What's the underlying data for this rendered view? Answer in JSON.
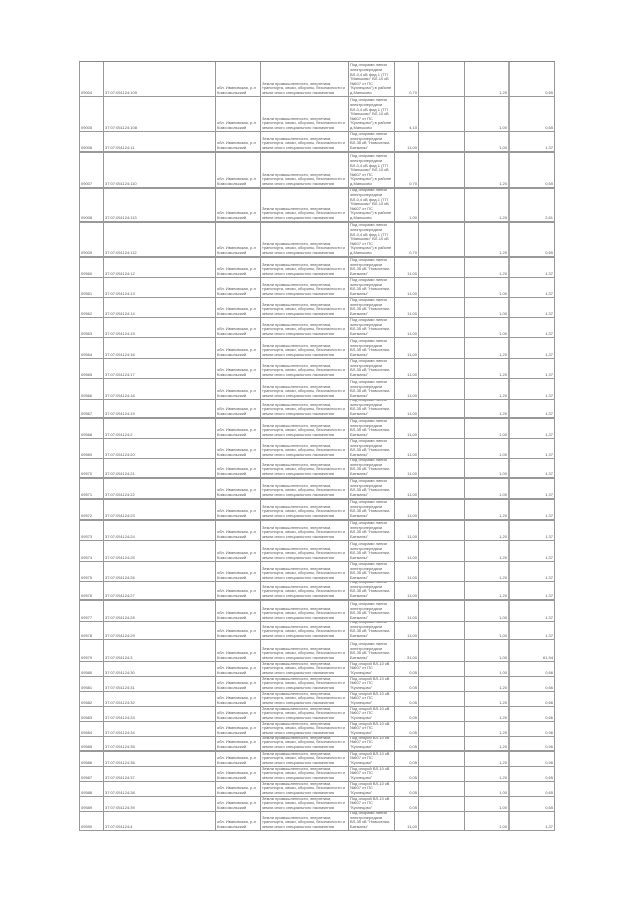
{
  "table": {
    "rows": [
      {
        "id": "09004",
        "cad": "37:07:051124:109",
        "addr": "обл. Ивановская, р-н Комсомольский",
        "cat": "Земли промышленности, энергетики, транспорта, связи, обороны, безопасности и земли иного специального назначения",
        "desc": "Под опорами линии электропередачи ВЛ-0,4 кВ фид.1 (ТП \"Маньково\" ВЛ-10 кВ №607 от ПС \"Кузнецово\") в районе д.Маньково",
        "area": "0,70",
        "c6": "",
        "c7": "1,20",
        "c8": "0,65"
      },
      {
        "id": "09005",
        "cad": "37:07:051124:108",
        "addr": "обл. Ивановская, р-н Комсомольский",
        "cat": "Земли промышленности, энергетики, транспорта, связи, обороны, безопасности и земли иного специального назначения",
        "desc": "Под опорами линии электропередачи ВЛ-0,4 кВ фид.1 (ТП \"Маньково\" ВЛ-10 кВ №607 от ПС \"Кузнецово\") в районе д.Маньково",
        "area": "4,10",
        "c6": "",
        "c7": "1,00",
        "c8": "0,65"
      },
      {
        "id": "09006",
        "cad": "37:07:051124:11",
        "addr": "обл. Ивановская, р-н Комсомольский",
        "cat": "Земли промышленности, энергетики, транспорта, связи, обороны, безопасности и земли иного специального назначения",
        "desc": "Под опорами линии электропередачи ВЛ-35 кВ \"Новоселки-Батманы\"",
        "area": "11,00",
        "c6": "",
        "c7": "1,00",
        "c8": "1,37"
      },
      {
        "id": "09007",
        "cad": "37:07:051124:110",
        "addr": "обл. Ивановская, р-н Комсомольский",
        "cat": "Земли промышленности, энергетики, транспорта, связи, обороны, безопасности и земли иного специального назначения",
        "desc": "Под опорами линии электропередачи ВЛ-0,4 кВ фид.1 (ТП \"Маньково\" ВЛ-10 кВ №607 от ПС \"Кузнецово\") в районе д.Маньково",
        "area": "0,70",
        "c6": "",
        "c7": "1,20",
        "c8": "0,65"
      },
      {
        "id": "09008",
        "cad": "37:07:051124:113",
        "addr": "обл. Ивановская, р-н Комсомольский",
        "cat": "Земли промышленности, энергетики, транспорта, связи, обороны, безопасности и земли иного специального назначения",
        "desc": "Под опорами линии электропередачи ВЛ-0,4 кВ фид.1 (ТП \"Маньково\" ВЛ-10 кВ №607 от ПС \"Кузнецово\") в районе д.Маньково",
        "area": "1,00",
        "c6": "",
        "c7": "1,20",
        "c8": "2,61"
      },
      {
        "id": "09009",
        "cad": "37:07:051124:112",
        "addr": "обл. Ивановская, р-н Комсомольский",
        "cat": "Земли промышленности, энергетики, транспорта, связи, обороны, безопасности и земли иного специального назначения",
        "desc": "Под опорами линии электропередачи ВЛ-0,4 кВ фид.1 (ТП \"Маньково\" ВЛ-10 кВ №607 от ПС \"Кузнецово\") в районе д.Маньково",
        "area": "0,70",
        "c6": "",
        "c7": "1,20",
        "c8": "0,65"
      },
      {
        "id": "09560",
        "cad": "37:07:051124:12",
        "addr": "обл. Ивановская, р-н Комсомольский",
        "cat": "Земли промышленности, энергетики, транспорта, связи, обороны, безопасности и земли иного специального назначения",
        "desc": "Под опорами линии электропередачи ВЛ-35 кВ \"Новоселки-Батманы\"",
        "area": "11,00",
        "c6": "",
        "c7": "1,20",
        "c8": "1,37"
      },
      {
        "id": "09561",
        "cad": "37:07:051124:13",
        "addr": "обл. Ивановская, р-н Комсомольский",
        "cat": "Земли промышленности, энергетики, транспорта, связи, обороны, безопасности и земли иного специального назначения",
        "desc": "Под опорами линии электропередачи ВЛ-35 кВ \"Новоселки-Батманы\"",
        "area": "11,00",
        "c6": "",
        "c7": "1,00",
        "c8": "1,37"
      },
      {
        "id": "09562",
        "cad": "37:07:051124:14",
        "addr": "обл. Ивановская, р-н Комсомольский",
        "cat": "Земли промышленности, энергетики, транспорта, связи, обороны, безопасности и земли иного специального назначения",
        "desc": "Под опорами линии электропередачи ВЛ-35 кВ \"Новоселки-Батманы\"",
        "area": "11,00",
        "c6": "",
        "c7": "1,00",
        "c8": "1,37"
      },
      {
        "id": "09563",
        "cad": "37:07:051124:15",
        "addr": "обл. Ивановская, р-н Комсомольский",
        "cat": "Земли промышленности, энергетики, транспорта, связи, обороны, безопасности и земли иного специального назначения",
        "desc": "Под опорами линии электропередачи ВЛ-35 кВ \"Новоселки-Батманы\"",
        "area": "11,00",
        "c6": "",
        "c7": "1,00",
        "c8": "1,37"
      },
      {
        "id": "09564",
        "cad": "37:07:051124:16",
        "addr": "обл. Ивановская, р-н Комсомольский",
        "cat": "Земли промышленности, энергетики, транспорта, связи, обороны, безопасности и земли иного специального назначения",
        "desc": "Под опорами линии электропередачи ВЛ-35 кВ \"Новоселки-Батманы\"",
        "area": "11,00",
        "c6": "",
        "c7": "1,20",
        "c8": "1,37"
      },
      {
        "id": "09565",
        "cad": "37:07:051124:17",
        "addr": "обл. Ивановская, р-н Комсомольский",
        "cat": "Земли промышленности, энергетики, транспорта, связи, обороны, безопасности и земли иного специального назначения",
        "desc": "Под опорами линии электропередачи ВЛ-35 кВ \"Новоселки-Батманы\"",
        "area": "11,00",
        "c6": "",
        "c7": "1,20",
        "c8": "1,37"
      },
      {
        "id": "09566",
        "cad": "37:07:051124:18",
        "addr": "обл. Ивановская, р-н Комсомольский",
        "cat": "Земли промышленности, энергетики, транспорта, связи, обороны, безопасности и земли иного специального назначения",
        "desc": "Под опорами линии электропередачи ВЛ-35 кВ \"Новоселки-Батманы\"",
        "area": "11,00",
        "c6": "",
        "c7": "1,20",
        "c8": "1,37"
      },
      {
        "id": "09567",
        "cad": "37:07:051124:19",
        "addr": "обл. Ивановская, р-н Комсомольский",
        "cat": "Земли промышленности, энергетики, транспорта, связи, обороны, безопасности и земли иного специального назначения",
        "desc": "Под опорами линии электропередачи ВЛ-35 кВ \"Новоселки-Батманы\"",
        "area": "11,00",
        "c6": "",
        "c7": "1,20",
        "c8": "1,37"
      },
      {
        "id": "09568",
        "cad": "37:07:051124:2",
        "addr": "обл. Ивановская, р-н Комсомольский",
        "cat": "Земли промышленности, энергетики, транспорта, связи, обороны, безопасности и земли иного специального назначения",
        "desc": "Под опорами линии электропередачи ВЛ-35 кВ \"Новоселки-Батманы\"",
        "area": "11,00",
        "c6": "",
        "c7": "1,00",
        "c8": "1,37"
      },
      {
        "id": "09569",
        "cad": "37:07:051124:20",
        "addr": "обл. Ивановская, р-н Комсомольский",
        "cat": "Земли промышленности, энергетики, транспорта, связи, обороны, безопасности и земли иного специального назначения",
        "desc": "Под опорами линии электропередачи ВЛ-35 кВ \"Новоселки-Батманы\"",
        "area": "11,00",
        "c6": "",
        "c7": "1,00",
        "c8": "1,37"
      },
      {
        "id": "09570",
        "cad": "37:07:051124:21",
        "addr": "обл. Ивановская, р-н Комсомольский",
        "cat": "Земли промышленности, энергетики, транспорта, связи, обороны, безопасности и земли иного специального назначения",
        "desc": "Под опорами линии электропередачи ВЛ-35 кВ \"Новоселки-Батманы\"",
        "area": "11,00",
        "c6": "",
        "c7": "1,00",
        "c8": "1,37"
      },
      {
        "id": "09571",
        "cad": "37:07:051124:22",
        "addr": "обл. Ивановская, р-н Комсомольский",
        "cat": "Земли промышленности, энергетики, транспорта, связи, обороны, безопасности и земли иного специального назначения",
        "desc": "Под опорами линии электропередачи ВЛ-35 кВ \"Новоселки-Батманы\"",
        "area": "11,00",
        "c6": "",
        "c7": "1,00",
        "c8": "1,37"
      },
      {
        "id": "09572",
        "cad": "37:07:051124:23",
        "addr": "обл. Ивановская, р-н Комсомольский",
        "cat": "Земли промышленности, энергетики, транспорта, связи, обороны, безопасности и земли иного специального назначения",
        "desc": "Под опорами линии электропередачи ВЛ-35 кВ \"Новоселки-Батманы\"",
        "area": "11,00",
        "c6": "",
        "c7": "1,20",
        "c8": "1,37"
      },
      {
        "id": "09573",
        "cad": "37:07:051124:24",
        "addr": "обл. Ивановская, р-н Комсомольский",
        "cat": "Земли промышленности, энергетики, транспорта, связи, обороны, безопасности и земли иного специального назначения",
        "desc": "Под опорами линии электропередачи ВЛ-35 кВ \"Новоселки-Батманы\"",
        "area": "11,00",
        "c6": "",
        "c7": "1,20",
        "c8": "1,37"
      },
      {
        "id": "09574",
        "cad": "37:07:051124:25",
        "addr": "обл. Ивановская, р-н Комсомольский",
        "cat": "Земли промышленности, энергетики, транспорта, связи, обороны, безопасности и земли иного специального назначения",
        "desc": "Под опорами линии электропередачи ВЛ-35 кВ \"Новоселки-Батманы\"",
        "area": "11,00",
        "c6": "",
        "c7": "1,20",
        "c8": "1,37"
      },
      {
        "id": "09575",
        "cad": "37:07:051124:26",
        "addr": "обл. Ивановская, р-н Комсомольский",
        "cat": "Земли промышленности, энергетики, транспорта, связи, обороны, безопасности и земли иного специального назначения",
        "desc": "Под опорами линии электропередачи ВЛ-35 кВ \"Новоселки-Батманы\"",
        "area": "11,00",
        "c6": "",
        "c7": "1,20",
        "c8": "1,37"
      },
      {
        "id": "09576",
        "cad": "37:07:051124:27",
        "addr": "обл. Ивановская, р-н Комсомольский",
        "cat": "Земли промышленности, энергетики, транспорта, связи, обороны, безопасности и земли иного специального назначения",
        "desc": "Под опорами линии электропередачи ВЛ-35 кВ \"Новоселки-Батманы\"",
        "area": "11,00",
        "c6": "",
        "c7": "1,20",
        "c8": "1,37"
      },
      {
        "id": "09577",
        "cad": "37:07:051124:28",
        "addr": "обл. Ивановская, р-н Комсомольский",
        "cat": "Земли промышленности, энергетики, транспорта, связи, обороны, безопасности и земли иного специального назначения",
        "desc": "Под опорами линии электропередачи ВЛ-35 кВ \"Новоселки-Батманы\"",
        "area": "11,00",
        "c6": "",
        "c7": "1,00",
        "c8": "1,37"
      },
      {
        "id": "09578",
        "cad": "37:07:051124:29",
        "addr": "обл. Ивановская, р-н Комсомольский",
        "cat": "Земли промышленности, энергетики, транспорта, связи, обороны, безопасности и земли иного специального назначения",
        "desc": "Под опорами линии электропередачи ВЛ-35 кВ \"Новоселки-Батманы\"",
        "area": "11,00",
        "c6": "",
        "c7": "1,00",
        "c8": "1,37"
      },
      {
        "id": "09579",
        "cad": "37:07:051124:3",
        "addr": "обл. Ивановская, р-н Комсомольский",
        "cat": "Земли промышленности, энергетики, транспорта, связи, обороны, безопасности и земли иного специального назначения",
        "desc": "Под опорами линии электропередачи ВЛ-35 кВ \"Новоселки-Батманы\"",
        "area": "31,00",
        "c6": "",
        "c7": "1,00",
        "c8": "61,94"
      },
      {
        "id": "09580",
        "cad": "37:07:051124:30",
        "addr": "обл. Ивановская, р-н Комсомольский",
        "cat": "Земли промышленности, энергетики, транспорта, связи, обороны, безопасности и земли иного специального назначения",
        "desc": "Под опорой ВЛ-10 кВ №607 от ПС \"Кузнецово\"",
        "area": "0,05",
        "c6": "",
        "c7": "1,00",
        "c8": "0,66"
      },
      {
        "id": "09581",
        "cad": "37:07:051124:31",
        "addr": "обл. Ивановская, р-н Комсомольский",
        "cat": "Земли промышленности, энергетики, транспорта, связи, обороны, безопасности и земли иного специального назначения",
        "desc": "Под опорой ВЛ-10 кВ №607 от ПС \"Кузнецово\"",
        "area": "0,05",
        "c6": "",
        "c7": "1,20",
        "c8": "0,66"
      },
      {
        "id": "09582",
        "cad": "37:07:051124:32",
        "addr": "обл. Ивановская, р-н Комсомольский",
        "cat": "Земли промышленности, энергетики, транспорта, связи, обороны, безопасности и земли иного специального назначения",
        "desc": "Под опорой ВЛ-10 кВ №607 от ПС \"Кузнецово\"",
        "area": "0,05",
        "c6": "",
        "c7": "1,20",
        "c8": "0,66"
      },
      {
        "id": "09583",
        "cad": "37:07:051124:33",
        "addr": "обл. Ивановская, р-н Комсомольский",
        "cat": "Земли промышленности, энергетики, транспорта, связи, обороны, безопасности и земли иного специального назначения",
        "desc": "Под опорой ВЛ-10 кВ №607 от ПС \"Кузнецово\"",
        "area": "0,05",
        "c6": "",
        "c7": "1,20",
        "c8": "0,66"
      },
      {
        "id": "09584",
        "cad": "37:07:051124:34",
        "addr": "обл. Ивановская, р-н Комсомольский",
        "cat": "Земли промышленности, энергетики, транспорта, связи, обороны, безопасности и земли иного специального назначения",
        "desc": "Под опорой ВЛ-10 кВ №607 от ПС \"Кузнецово\"",
        "area": "0,05",
        "c6": "",
        "c7": "1,20",
        "c8": "0,96"
      },
      {
        "id": "09585",
        "cad": "37:07:051124:35",
        "addr": "обл. Ивановская, р-н Комсомольский",
        "cat": "Земли промышленности, энергетики, транспорта, связи, обороны, безопасности и земли иного специального назначения",
        "desc": "Под опорой ВЛ-10 кВ №607 от ПС \"Кузнецово\"",
        "area": "0,05",
        "c6": "",
        "c7": "1,20",
        "c8": "0,96"
      },
      {
        "id": "09586",
        "cad": "37:07:051124:36",
        "addr": "обл. Ивановская, р-н Комсомольский",
        "cat": "Земли промышленности, энергетики, транспорта, связи, обороны, безопасности и земли иного специального назначения",
        "desc": "Под опорой ВЛ-10 кВ №607 от ПС \"Кузнецово\"",
        "area": "0,05",
        "c6": "",
        "c7": "1,20",
        "c8": "0,96"
      },
      {
        "id": "09587",
        "cad": "37:07:051124:37",
        "addr": "обл. Ивановская, р-н Комсомольский",
        "cat": "Земли промышленности, энергетики, транспорта, связи, обороны, безопасности и земли иного специального назначения",
        "desc": "Под опорой ВЛ-10 кВ №607 от ПС \"Кузнецово\"",
        "area": "0,05",
        "c6": "",
        "c7": "1,20",
        "c8": "0,65"
      },
      {
        "id": "09588",
        "cad": "37:07:051124:38",
        "addr": "обл. Ивановская, р-н Комсомольский",
        "cat": "Земли промышленности, энергетики, транспорта, связи, обороны, безопасности и земли иного специального назначения",
        "desc": "Под опорой ВЛ-10 кВ №607 от ПС \"Кузнецово\"",
        "area": "0,05",
        "c6": "",
        "c7": "1,00",
        "c8": "0,65"
      },
      {
        "id": "09589",
        "cad": "37:07:051124:39",
        "addr": "обл. Ивановская, р-н Комсомольский",
        "cat": "Земли промышленности, энергетики, транспорта, связи, обороны, безопасности и земли иного специального назначения",
        "desc": "Под опорой ВЛ-10 кВ №607 от ПС \"Кузнецово\"",
        "area": "0,05",
        "c6": "",
        "c7": "1,00",
        "c8": "0,65"
      },
      {
        "id": "09590",
        "cad": "37:07:051124:4",
        "addr": "обл. Ивановская, р-н Комсомольский",
        "cat": "Земли промышленности, энергетики, транспорта, связи, обороны, безопасности и земли иного специального назначения",
        "desc": "Под опорами линии электропередачи ВЛ-35 кВ \"Новоселки-Батманы\"",
        "area": "11,00",
        "c6": "",
        "c7": "1,00",
        "c8": "1,37"
      }
    ]
  }
}
